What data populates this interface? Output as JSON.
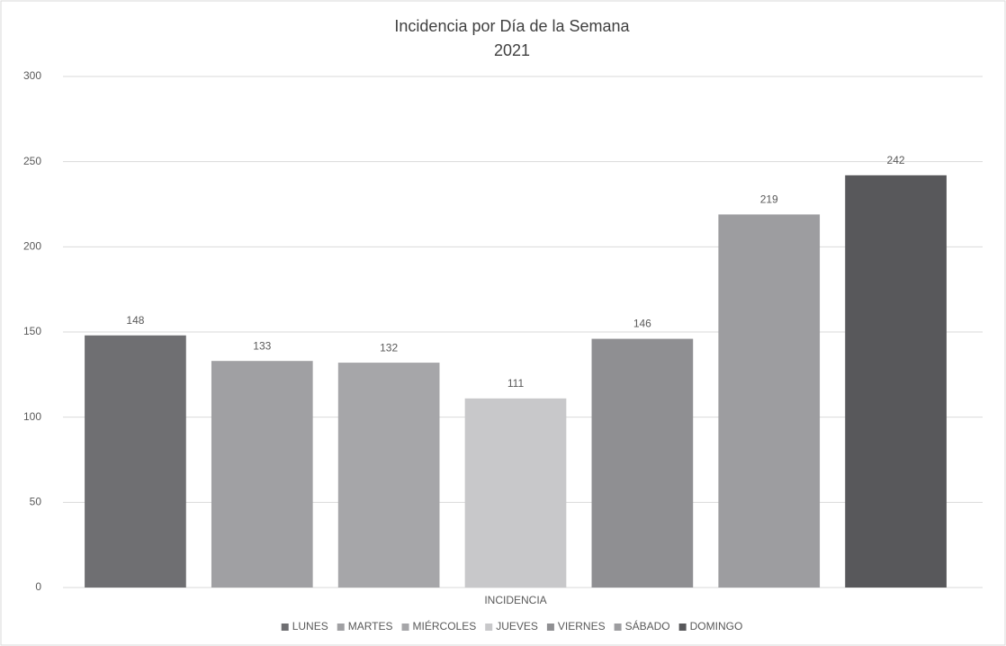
{
  "chart_data": {
    "type": "bar",
    "title": "Incidencia por Día de la Semana",
    "subtitle": "2021",
    "categories": [
      "INCIDENCIA"
    ],
    "series": [
      {
        "name": "LUNES",
        "color": "#6f6f72",
        "values": [
          148
        ]
      },
      {
        "name": "MARTES",
        "color": "#a0a0a3",
        "values": [
          133
        ]
      },
      {
        "name": "MIÉRCOLES",
        "color": "#a6a6a9",
        "values": [
          132
        ]
      },
      {
        "name": "JUEVES",
        "color": "#c8c8ca",
        "values": [
          111
        ]
      },
      {
        "name": "VIERNES",
        "color": "#8f8f92",
        "values": [
          146
        ]
      },
      {
        "name": "SÁBADO",
        "color": "#9d9da0",
        "values": [
          219
        ]
      },
      {
        "name": "DOMINGO",
        "color": "#58585b",
        "values": [
          242
        ]
      }
    ],
    "ylim": [
      0,
      300
    ],
    "yticks": [
      0,
      50,
      100,
      150,
      200,
      250,
      300
    ],
    "grid": true,
    "legend": "bottom"
  }
}
